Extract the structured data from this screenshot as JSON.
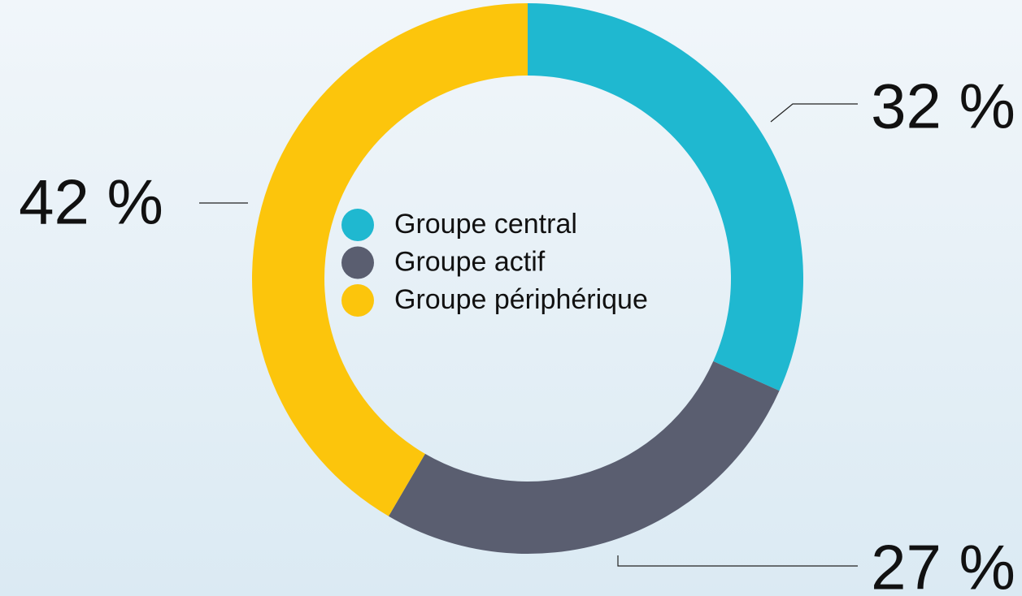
{
  "chart_data": {
    "type": "donut",
    "categories": [
      "Groupe central",
      "Groupe actif",
      "Groupe périphérique"
    ],
    "values": [
      32,
      27,
      42
    ],
    "value_labels": [
      "32 %",
      "27 %",
      "42 %"
    ],
    "colors": [
      "#1fb8d0",
      "#5a5e70",
      "#fcc50c"
    ],
    "legend": "center"
  }
}
